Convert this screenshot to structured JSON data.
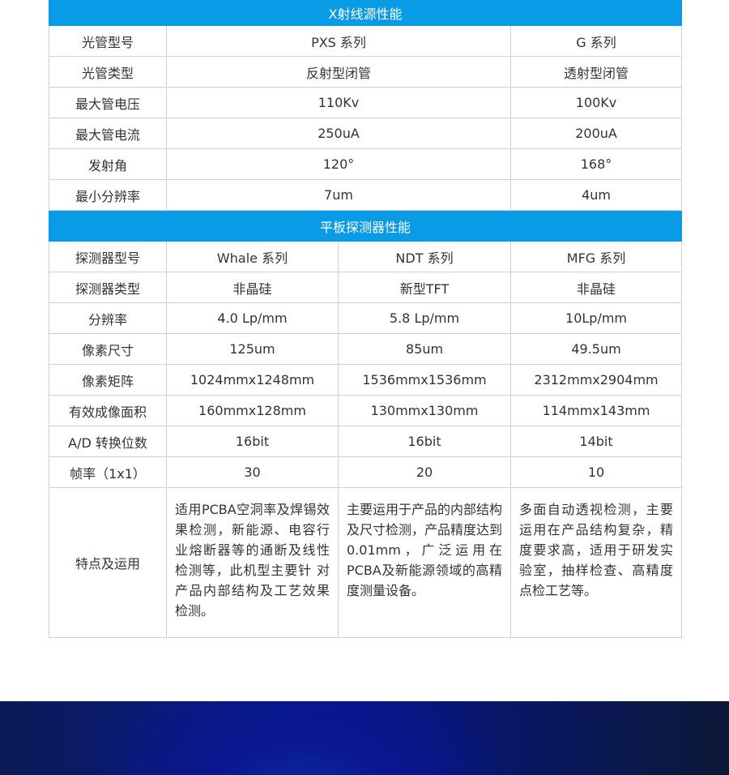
{
  "xray": {
    "title": "X射线源性能",
    "rows": [
      [
        "光管型号",
        "PXS 系列",
        "G 系列"
      ],
      [
        "光管类型",
        "反射型闭管",
        "透射型闭管"
      ],
      [
        "最大管电压",
        "110Kv",
        "100Kv"
      ],
      [
        "最大管电流",
        "250uA",
        "200uA"
      ],
      [
        "发射角",
        "120°",
        "168°"
      ],
      [
        "最小分辨率",
        "7um",
        "4um"
      ]
    ]
  },
  "detector": {
    "title": "平板探测器性能",
    "rows": [
      [
        "探测器型号",
        "Whale 系列",
        "NDT 系列",
        "MFG 系列"
      ],
      [
        "探测器类型",
        "非晶硅",
        "新型TFT",
        "非晶硅"
      ],
      [
        "分辨率",
        "4.0 Lp/mm",
        "5.8 Lp/mm",
        "10Lp/mm"
      ],
      [
        "像素尺寸",
        "125um",
        "85um",
        "49.5um"
      ],
      [
        "像素矩阵",
        "1024mmx1248mm",
        "1536mmx1536mm",
        "2312mmx2904mm"
      ],
      [
        "有效成像面积",
        "160mmx128mm",
        "130mmx130mm",
        "114mmx143mm"
      ],
      [
        "A/D 转换位数",
        "16bit",
        "16bit",
        "14bit"
      ],
      [
        "帧率（1x1）",
        "30",
        "20",
        "10"
      ]
    ],
    "features": [
      "特点及运用",
      "适用PCBA空洞率及焊锡效果检测，新能源、电容行业熔断器等的通断及线性检测等，此机型主要针 对产品内部结构及工艺效果检测。",
      "主要运用于产品的内部结构及尺寸检测，产品精度达到0.01mm，广泛运用在PCBA及新能源领域的高精度测量设备。",
      "多面自动透视检测，主要运用在产品结构复杂，精度要求高，适用于研发实验室，抽样检查、高精度点检工艺等。"
    ]
  },
  "colors": {
    "header": "#0a9be6",
    "border": "#d2d2d2",
    "band": "#081a8a"
  }
}
